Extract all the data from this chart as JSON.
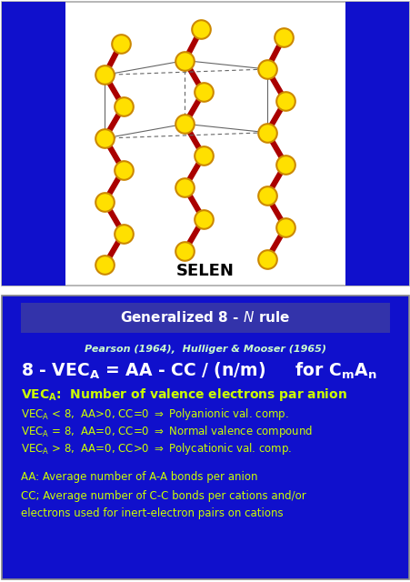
{
  "fig_width": 4.52,
  "fig_height": 6.4,
  "dpi": 100,
  "bg_color": "#ffffff",
  "panel1": {
    "bg_color": "#ffffff",
    "border_color": "#888888",
    "blue_color": "#1010cc",
    "label": "SELEN",
    "label_color": "#000000",
    "label_fontsize": 13,
    "bond_color": "#aa0000",
    "atom_color": "#FFE000",
    "atom_edge": "#cc8800",
    "cell_color": "#666666"
  },
  "panel2": {
    "bg_color": "#1010cc",
    "border_color": "#888888",
    "title_box_color": "#3333aa",
    "title_text": "Generalized 8 - $\\mathit{N}$ rule",
    "title_color": "#ffffff",
    "title_fontsize": 11,
    "ref_text": "Pearson (1964),  Hulliger & Mooser (1965)",
    "ref_color": "#ccffcc",
    "ref_fontsize": 8,
    "formula_color": "#ffffff",
    "formula_fontsize": 13.5,
    "vec_header_color": "#ccff00",
    "vec_header_fontsize": 10,
    "vec_lines_color": "#ccff00",
    "vec_lines_fontsize": 8.5,
    "aa_lines_color": "#ccff00",
    "aa_lines_fontsize": 8.5,
    "vec_lines": [
      "VEC$_\\mathregular{A}$ < 8,  AA>0, CC=0 $\\Rightarrow$ Polyanionic val. comp.",
      "VEC$_\\mathregular{A}$ = 8,  AA=0, CC=0 $\\Rightarrow$ Normal valence compound",
      "VEC$_\\mathregular{A}$ > 8,  AA=0, CC>0 $\\Rightarrow$ Polycationic val. comp."
    ],
    "aa_lines": [
      "AA: Average number of A-A bonds per anion",
      "CC; Average number of C-C bonds per cations and/or",
      "electrons used for inert-electron pairs on cations"
    ]
  }
}
